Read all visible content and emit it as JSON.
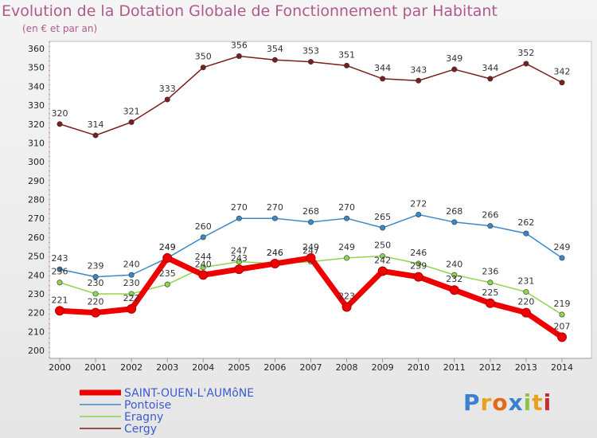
{
  "chart_data": {
    "type": "line",
    "title": "Evolution de la Dotation Globale de Fonctionnement par Habitant",
    "subtitle": "(en € et par an)",
    "categories": [
      "2000",
      "2001",
      "2002",
      "2003",
      "2004",
      "2005",
      "2006",
      "2007",
      "2008",
      "2009",
      "2010",
      "2011",
      "2012",
      "2013",
      "2014"
    ],
    "ylim": [
      200,
      360
    ],
    "yticks": [
      200,
      210,
      220,
      230,
      240,
      250,
      260,
      270,
      280,
      290,
      300,
      310,
      320,
      330,
      340,
      350,
      360
    ],
    "grid": false,
    "legend_position": "bottom-left",
    "series": [
      {
        "name": "Cergy",
        "color": "#7a1e1e",
        "values": [
          320,
          314,
          321,
          333,
          350,
          356,
          354,
          353,
          351,
          344,
          343,
          349,
          344,
          352,
          342
        ]
      },
      {
        "name": "Pontoise",
        "color": "#3b88c9",
        "values": [
          243,
          239,
          240,
          249,
          260,
          270,
          270,
          268,
          270,
          265,
          272,
          268,
          266,
          262,
          249
        ]
      },
      {
        "name": "Eragny",
        "color": "#8fd54f",
        "values": [
          236,
          230,
          230,
          235,
          244,
          247,
          246,
          247,
          249,
          250,
          246,
          240,
          236,
          231,
          219
        ]
      },
      {
        "name": "SAINT-OUEN-L'AUMôNE",
        "color": "#ee0000",
        "values": [
          221,
          220,
          222,
          249,
          240,
          243,
          246,
          249,
          223,
          242,
          239,
          232,
          225,
          220,
          207
        ]
      }
    ]
  },
  "legend": {
    "items": [
      "SAINT-OUEN-L'AUMôNE",
      "Pontoise",
      "Eragny",
      "Cergy"
    ]
  },
  "logo": {
    "letters": [
      "P",
      "r",
      "o",
      "x",
      "i",
      "t",
      "i"
    ],
    "colors": [
      "#3a7fd0",
      "#e8a21a",
      "#e06a1a",
      "#3a7fd0",
      "#8cc63f",
      "#e8a21a",
      "#cc2a2a"
    ]
  }
}
